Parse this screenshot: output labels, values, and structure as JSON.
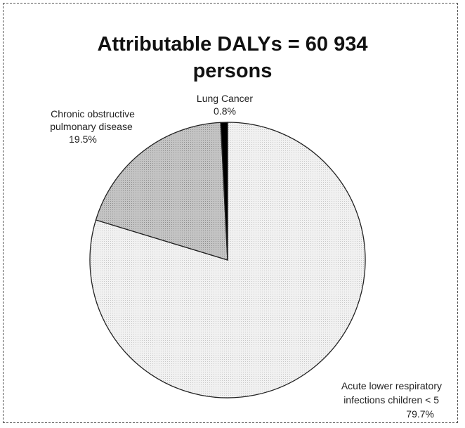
{
  "chart_data": {
    "type": "pie",
    "title_lines": [
      "Attributable DALYs = 60 934",
      "persons"
    ],
    "slices": [
      {
        "label_lines": [
          "Acute lower respiratory",
          "infections children < 5"
        ],
        "value_label": "79.7%",
        "value": 79.7,
        "color": "#eeeeee"
      },
      {
        "label_lines": [
          "Chronic obstructive",
          "pulmonary disease"
        ],
        "value_label": "19.5%",
        "value": 19.5,
        "color": "#b4b4b4"
      },
      {
        "label_lines": [
          "Lung Cancer"
        ],
        "value_label": "0.8%",
        "value": 0.8,
        "color": "#000000"
      }
    ]
  }
}
